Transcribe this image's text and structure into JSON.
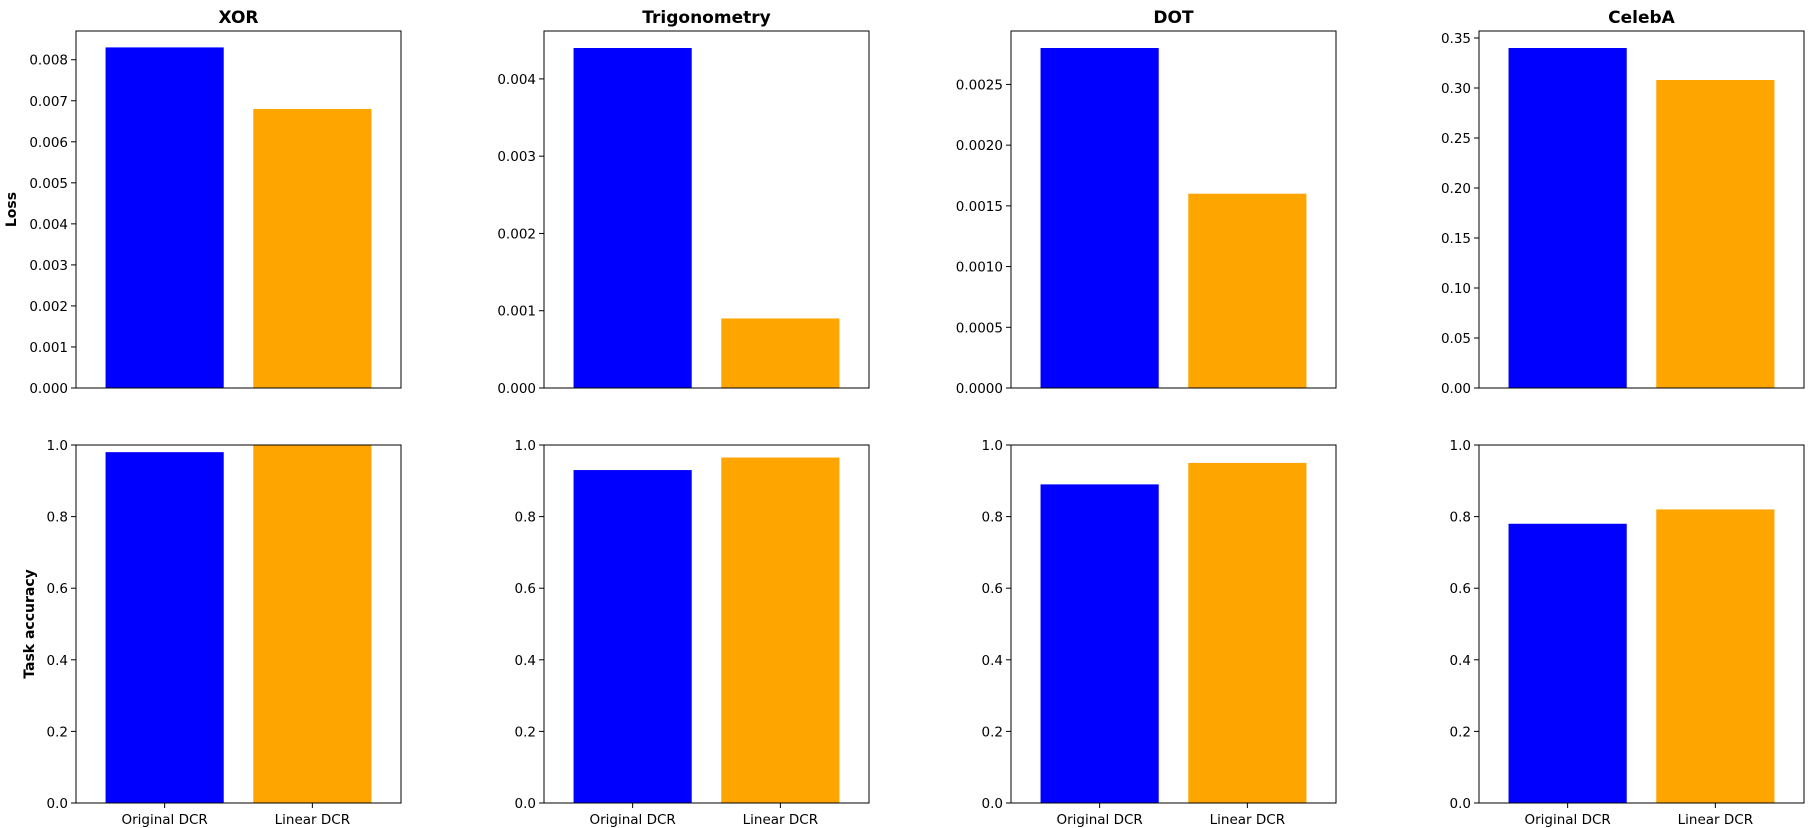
{
  "chart_data": [
    {
      "type": "bar",
      "title": "XOR",
      "ylabel": "Loss",
      "categories": [
        "Original DCR",
        "Linear DCR"
      ],
      "values": [
        0.0083,
        0.0068
      ],
      "colors": [
        "#0000ff",
        "#ffa500"
      ],
      "ylim": [
        0,
        0.0087
      ],
      "yticks": [
        0,
        0.001,
        0.002,
        0.003,
        0.004,
        0.005,
        0.006,
        0.007,
        0.008
      ],
      "ytick_labels": [
        "0.000",
        "0.001",
        "0.002",
        "0.003",
        "0.004",
        "0.005",
        "0.006",
        "0.007",
        "0.008"
      ],
      "show_xticklabels": false
    },
    {
      "type": "bar",
      "title": "Trigonometry",
      "ylabel": "",
      "categories": [
        "Original DCR",
        "Linear DCR"
      ],
      "values": [
        0.0044,
        0.0009
      ],
      "colors": [
        "#0000ff",
        "#ffa500"
      ],
      "ylim": [
        0,
        0.00462
      ],
      "yticks": [
        0,
        0.001,
        0.002,
        0.003,
        0.004
      ],
      "ytick_labels": [
        "0.000",
        "0.001",
        "0.002",
        "0.003",
        "0.004"
      ],
      "show_xticklabels": false
    },
    {
      "type": "bar",
      "title": "DOT",
      "ylabel": "",
      "categories": [
        "Original DCR",
        "Linear DCR"
      ],
      "values": [
        0.0028,
        0.0016
      ],
      "colors": [
        "#0000ff",
        "#ffa500"
      ],
      "ylim": [
        0,
        0.00294
      ],
      "yticks": [
        0,
        0.0005,
        0.001,
        0.0015,
        0.002,
        0.0025
      ],
      "ytick_labels": [
        "0.0000",
        "0.0005",
        "0.0010",
        "0.0015",
        "0.0020",
        "0.0025"
      ],
      "show_xticklabels": false
    },
    {
      "type": "bar",
      "title": "CelebA",
      "ylabel": "",
      "categories": [
        "Original DCR",
        "Linear DCR"
      ],
      "values": [
        0.34,
        0.308
      ],
      "colors": [
        "#0000ff",
        "#ffa500"
      ],
      "ylim": [
        0,
        0.357
      ],
      "yticks": [
        0,
        0.05,
        0.1,
        0.15,
        0.2,
        0.25,
        0.3,
        0.35
      ],
      "ytick_labels": [
        "0.00",
        "0.05",
        "0.10",
        "0.15",
        "0.20",
        "0.25",
        "0.30",
        "0.35"
      ],
      "show_xticklabels": false
    },
    {
      "type": "bar",
      "title": "",
      "ylabel": "Task accuracy",
      "categories": [
        "Original DCR",
        "Linear DCR"
      ],
      "values": [
        0.98,
        1.0
      ],
      "colors": [
        "#0000ff",
        "#ffa500"
      ],
      "ylim": [
        0,
        1.0
      ],
      "yticks": [
        0,
        0.2,
        0.4,
        0.6,
        0.8,
        1.0
      ],
      "ytick_labels": [
        "0.0",
        "0.2",
        "0.4",
        "0.6",
        "0.8",
        "1.0"
      ],
      "show_xticklabels": true
    },
    {
      "type": "bar",
      "title": "",
      "ylabel": "",
      "categories": [
        "Original DCR",
        "Linear DCR"
      ],
      "values": [
        0.93,
        0.965
      ],
      "colors": [
        "#0000ff",
        "#ffa500"
      ],
      "ylim": [
        0,
        1.0
      ],
      "yticks": [
        0,
        0.2,
        0.4,
        0.6,
        0.8,
        1.0
      ],
      "ytick_labels": [
        "0.0",
        "0.2",
        "0.4",
        "0.6",
        "0.8",
        "1.0"
      ],
      "show_xticklabels": true
    },
    {
      "type": "bar",
      "title": "",
      "ylabel": "",
      "categories": [
        "Original DCR",
        "Linear DCR"
      ],
      "values": [
        0.89,
        0.95
      ],
      "colors": [
        "#0000ff",
        "#ffa500"
      ],
      "ylim": [
        0,
        1.0
      ],
      "yticks": [
        0,
        0.2,
        0.4,
        0.6,
        0.8,
        1.0
      ],
      "ytick_labels": [
        "0.0",
        "0.2",
        "0.4",
        "0.6",
        "0.8",
        "1.0"
      ],
      "show_xticklabels": true
    },
    {
      "type": "bar",
      "title": "",
      "ylabel": "",
      "categories": [
        "Original DCR",
        "Linear DCR"
      ],
      "values": [
        0.78,
        0.82
      ],
      "colors": [
        "#0000ff",
        "#ffa500"
      ],
      "ylim": [
        0,
        1.0
      ],
      "yticks": [
        0,
        0.2,
        0.4,
        0.6,
        0.8,
        1.0
      ],
      "ytick_labels": [
        "0.0",
        "0.2",
        "0.4",
        "0.6",
        "0.8",
        "1.0"
      ],
      "show_xticklabels": true
    }
  ]
}
